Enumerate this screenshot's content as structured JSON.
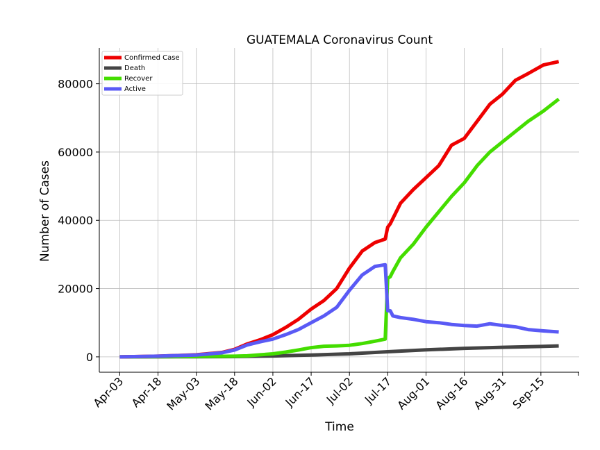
{
  "chart_data": {
    "type": "line",
    "title": "GUATEMALA Coronavirus Count",
    "xlabel": "Time",
    "ylabel": "Number of Cases",
    "x_start": "Apr-03",
    "x_tick_labels": [
      "Apr-03",
      "Apr-18",
      "May-03",
      "May-18",
      "Jun-02",
      "Jun-17",
      "Jul-02",
      "Jul-17",
      "Aug-01",
      "Aug-16",
      "Aug-31",
      "Sep-15"
    ],
    "x_tick_day_index": [
      0,
      15,
      30,
      45,
      60,
      75,
      90,
      105,
      120,
      135,
      150,
      165
    ],
    "xlim": [
      -8,
      180
    ],
    "ylim": [
      -4500,
      90500
    ],
    "y_ticks": [
      0,
      20000,
      40000,
      60000,
      80000
    ],
    "grid": true,
    "legend_position": "top-left",
    "series": [
      {
        "name": "Confirmed Case",
        "color": "#ee0000",
        "x": [
          0,
          15,
          30,
          40,
          45,
          50,
          55,
          60,
          65,
          70,
          75,
          80,
          85,
          90,
          95,
          100,
          104,
          105,
          106,
          110,
          115,
          120,
          125,
          130,
          135,
          140,
          145,
          150,
          155,
          160,
          166,
          172
        ],
        "y": [
          0,
          200,
          600,
          1300,
          2200,
          3800,
          5000,
          6500,
          8600,
          11000,
          14000,
          16500,
          20000,
          26000,
          31000,
          33500,
          34500,
          38000,
          39000,
          45000,
          49000,
          52500,
          56000,
          62000,
          64000,
          69000,
          74000,
          77000,
          81000,
          83000,
          85500,
          86500
        ]
      },
      {
        "name": "Death",
        "color": "#444444",
        "x": [
          0,
          30,
          45,
          60,
          75,
          90,
          105,
          120,
          135,
          150,
          165,
          172
        ],
        "y": [
          0,
          30,
          80,
          250,
          550,
          900,
          1500,
          2050,
          2500,
          2800,
          3050,
          3200
        ]
      },
      {
        "name": "Recover",
        "color": "#44dd00",
        "x": [
          0,
          30,
          45,
          50,
          55,
          60,
          65,
          70,
          75,
          80,
          85,
          90,
          95,
          100,
          104,
          105,
          106,
          107,
          110,
          115,
          120,
          125,
          130,
          135,
          140,
          145,
          150,
          155,
          160,
          166,
          172
        ],
        "y": [
          0,
          100,
          200,
          300,
          600,
          900,
          1400,
          2000,
          2700,
          3100,
          3200,
          3400,
          3900,
          4600,
          5200,
          23000,
          23500,
          25000,
          29000,
          33000,
          38000,
          42500,
          47000,
          51000,
          56000,
          60000,
          63000,
          66000,
          69000,
          72000,
          75500
        ]
      },
      {
        "name": "Active",
        "color": "#5a5af5",
        "x": [
          0,
          15,
          30,
          40,
          45,
          50,
          55,
          60,
          65,
          70,
          75,
          80,
          85,
          90,
          95,
          100,
          104,
          105,
          106,
          107,
          110,
          115,
          120,
          125,
          130,
          135,
          140,
          145,
          150,
          155,
          160,
          166,
          172
        ],
        "y": [
          0,
          200,
          550,
          1200,
          2000,
          3500,
          4400,
          5200,
          6500,
          8000,
          10000,
          12000,
          14500,
          19500,
          24000,
          26500,
          27000,
          13500,
          13500,
          12000,
          11500,
          11000,
          10300,
          10000,
          9500,
          9200,
          9000,
          9700,
          9200,
          8800,
          8000,
          7600,
          7300
        ]
      }
    ]
  }
}
